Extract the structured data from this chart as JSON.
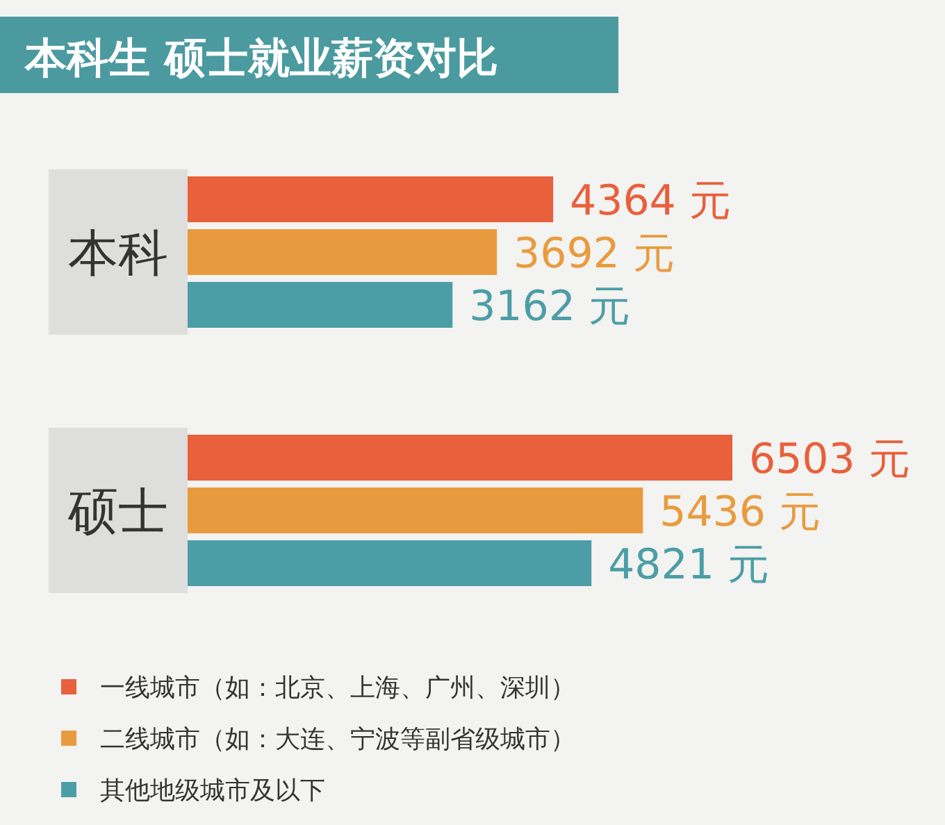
{
  "chart_data": {
    "type": "bar",
    "orientation": "horizontal",
    "title": "本科生 硕士就业薪资对比",
    "categories": [
      "本科",
      "硕士"
    ],
    "legend": "bottom left",
    "series": [
      {
        "name": "一线城市（如：北京、上海、广州、深圳）",
        "color": "#e8603c",
        "values": [
          4364,
          6503
        ],
        "value_labels": [
          "4364 元",
          "6503 元"
        ]
      },
      {
        "name": "二线城市（如：大连、宁波等副省级城市）",
        "color": "#e89b3e",
        "values": [
          3692,
          5436
        ],
        "value_labels": [
          "3692 元",
          "5436 元"
        ]
      },
      {
        "name": "其他地级城市及以下",
        "color": "#4c9ea6",
        "values": [
          3162,
          4821
        ],
        "value_labels": [
          "3162 元",
          "4821 元"
        ]
      }
    ]
  }
}
